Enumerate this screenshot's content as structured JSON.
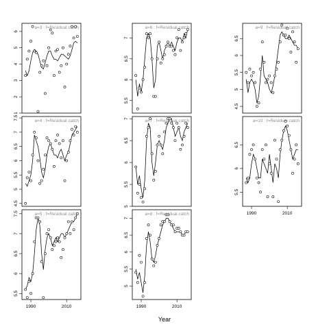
{
  "figure": {
    "xlabel": "Year"
  },
  "chart_data": [
    {
      "type": "line",
      "title": "a=3 : f=Residual catch",
      "xlim": [
        1985,
        2018
      ],
      "ylim": [
        1,
        6.5
      ],
      "yticks": [
        1,
        2,
        3,
        4,
        5,
        6
      ],
      "xticks": [],
      "x": [
        1987,
        1988,
        1989,
        1990,
        1991,
        1992,
        1993,
        1994,
        1995,
        1996,
        1997,
        1998,
        1999,
        2000,
        2001,
        2002,
        2003,
        2004,
        2005,
        2006,
        2007,
        2008,
        2009,
        2010,
        2011,
        2012,
        2013,
        2014,
        2015,
        2016
      ],
      "line": [
        3.6,
        3.3,
        3.6,
        4.2,
        4.7,
        4.9,
        4.8,
        4.6,
        4.2,
        3.8,
        3.7,
        4.1,
        4.5,
        4.8,
        4.8,
        4.5,
        4.3,
        4.3,
        4.2,
        4.4,
        4.6,
        4.6,
        4.5,
        4.4,
        4.3,
        4.5,
        4.9,
        5.3,
        5.4,
        5.3
      ],
      "points": [
        3.3,
        4.3,
        4.8,
        5.4,
        6.3,
        4.8,
        4.7,
        1.1,
        3.5,
        3.9,
        4.2,
        2.2,
        3.9,
        5.0,
        6.1,
        5.9,
        3.3,
        4.8,
        4.9,
        3.5,
        3.9,
        5.0,
        2.6,
        4.0,
        4.6,
        5.1,
        6.3,
        5.6,
        6.3,
        5.7
      ]
    },
    {
      "type": "line",
      "title": "a=6 : f=Residual catch",
      "xlim": [
        1985,
        2018
      ],
      "ylim": [
        5.2,
        7.35
      ],
      "yticks": [
        5.5,
        6.0,
        6.5,
        7.0
      ],
      "xticks": [],
      "x": [
        1987,
        1988,
        1989,
        1990,
        1991,
        1992,
        1993,
        1994,
        1995,
        1996,
        1997,
        1998,
        1999,
        2000,
        2001,
        2002,
        2003,
        2004,
        2005,
        2006,
        2007,
        2008,
        2009,
        2010,
        2011,
        2012,
        2013,
        2014,
        2015,
        2016
      ],
      "line": [
        6.0,
        5.6,
        5.9,
        5.7,
        6.0,
        6.5,
        7.0,
        7.1,
        7.0,
        6.5,
        5.8,
        6.0,
        6.8,
        6.9,
        6.7,
        6.5,
        6.7,
        6.8,
        6.9,
        6.8,
        6.9,
        6.8,
        6.7,
        6.9,
        7.0,
        7.0,
        6.9,
        7.1,
        7.0,
        7.2
      ],
      "points": [
        6.1,
        5.3,
        5.8,
        5.7,
        6.0,
        6.3,
        7.1,
        7.0,
        7.1,
        6.5,
        5.6,
        5.6,
        6.5,
        6.9,
        6.4,
        6.5,
        6.6,
        6.8,
        6.9,
        6.8,
        6.8,
        6.7,
        6.6,
        7.0,
        7.2,
        6.7,
        6.9,
        7.0,
        7.1,
        7.2
      ]
    },
    {
      "type": "line",
      "title": "a=9 : f=Residual catch",
      "xlim": [
        1985,
        2018
      ],
      "ylim": [
        4.3,
        6.95
      ],
      "yticks": [
        4.5,
        5.0,
        5.5,
        6.0,
        6.5
      ],
      "xticks": [],
      "x": [
        1987,
        1988,
        1989,
        1990,
        1991,
        1992,
        1993,
        1994,
        1995,
        1996,
        1997,
        1998,
        1999,
        2000,
        2001,
        2002,
        2003,
        2004,
        2005,
        2006,
        2007,
        2008,
        2009,
        2010,
        2011,
        2012,
        2013,
        2014,
        2015,
        2016
      ],
      "line": [
        5.3,
        4.9,
        5.2,
        5.3,
        5.2,
        5.0,
        4.6,
        4.8,
        5.4,
        6.0,
        5.4,
        5.3,
        5.2,
        5.0,
        4.9,
        5.1,
        5.4,
        5.8,
        6.2,
        6.6,
        6.7,
        6.6,
        6.5,
        6.5,
        6.6,
        6.5,
        6.4,
        6.3,
        6.3,
        6.2
      ],
      "points": [
        5.5,
        5.2,
        5.6,
        5.4,
        5.5,
        5.2,
        4.5,
        4.6,
        5.6,
        6.4,
        5.8,
        5.2,
        5.3,
        5.4,
        5.2,
        4.9,
        5.4,
        5.6,
        5.8,
        6.4,
        6.9,
        6.6,
        6.6,
        6.8,
        6.5,
        6.1,
        6.7,
        6.4,
        5.8,
        6.2
      ]
    },
    {
      "type": "line",
      "title": "a=4 : f=Residual catch",
      "xlim": [
        1985,
        2018
      ],
      "ylim": [
        4.4,
        7.55
      ],
      "yticks": [
        4.5,
        5.0,
        5.5,
        6.0,
        6.5,
        7.0,
        7.5
      ],
      "xticks": [],
      "x": [
        1987,
        1988,
        1989,
        1990,
        1991,
        1992,
        1993,
        1994,
        1995,
        1996,
        1997,
        1998,
        1999,
        2000,
        2001,
        2002,
        2003,
        2004,
        2005,
        2006,
        2007,
        2008,
        2009,
        2010,
        2011,
        2012,
        2013,
        2014,
        2015,
        2016
      ],
      "line": [
        5.2,
        5.1,
        5.3,
        5.5,
        6.0,
        6.9,
        6.7,
        6.5,
        6.1,
        5.6,
        5.4,
        5.7,
        6.2,
        6.5,
        6.6,
        6.4,
        6.2,
        6.2,
        6.1,
        6.3,
        6.4,
        6.2,
        6.0,
        6.2,
        6.3,
        6.6,
        6.9,
        7.0,
        7.1,
        7.2
      ],
      "points": [
        4.5,
        5.4,
        5.6,
        5.3,
        6.2,
        7.0,
        6.8,
        6.0,
        5.2,
        5.3,
        5.7,
        6.2,
        6.8,
        6.7,
        6.6,
        6.4,
        5.8,
        6.7,
        6.9,
        6.6,
        6.1,
        6.7,
        5.3,
        6.0,
        6.3,
        6.7,
        7.1,
        6.9,
        7.2,
        7.0
      ]
    },
    {
      "type": "line",
      "title": "a=7 : f=Residual catch",
      "xlim": [
        1985,
        2018
      ],
      "ylim": [
        5.0,
        7.05
      ],
      "yticks": [
        5.0,
        5.5,
        6.0,
        6.5,
        7.0
      ],
      "xticks": [],
      "x": [
        1987,
        1988,
        1989,
        1990,
        1991,
        1992,
        1993,
        1994,
        1995,
        1996,
        1997,
        1998,
        1999,
        2000,
        2001,
        2002,
        2003,
        2004,
        2005,
        2006,
        2007,
        2008,
        2009,
        2010,
        2011,
        2012,
        2013,
        2014,
        2015,
        2016
      ],
      "line": [
        5.9,
        5.5,
        5.7,
        5.4,
        5.2,
        5.6,
        6.5,
        6.9,
        6.8,
        6.0,
        5.7,
        6.0,
        6.4,
        6.5,
        6.4,
        6.3,
        6.5,
        6.8,
        6.9,
        7.0,
        7.0,
        6.8,
        6.6,
        6.7,
        6.8,
        6.6,
        6.5,
        6.7,
        6.8,
        6.9
      ],
      "points": [
        5.9,
        5.3,
        5.5,
        5.2,
        5.1,
        5.4,
        6.6,
        6.8,
        7.0,
        6.2,
        5.6,
        5.8,
        6.4,
        6.6,
        6.4,
        6.2,
        6.7,
        6.9,
        7.0,
        7.0,
        6.9,
        6.8,
        6.5,
        6.9,
        6.8,
        6.3,
        6.4,
        6.6,
        6.9,
        6.8
      ]
    },
    {
      "type": "line",
      "title": "a=10 : f=Residual catch",
      "xlim": [
        1985,
        2018
      ],
      "ylim": [
        5.2,
        7.1
      ],
      "yticks": [
        5.5,
        6.0,
        6.5
      ],
      "xticks": [
        1990,
        2010
      ],
      "x": [
        1987,
        1988,
        1989,
        1990,
        1991,
        1992,
        1993,
        1994,
        1995,
        1996,
        1997,
        1998,
        1999,
        2000,
        2001,
        2002,
        2003,
        2004,
        2005,
        2006,
        2007,
        2008,
        2009,
        2010,
        2011,
        2012,
        2013,
        2014,
        2015,
        2016
      ],
      "line": [
        5.8,
        5.7,
        5.8,
        6.1,
        6.3,
        6.2,
        6.0,
        5.8,
        5.8,
        6.2,
        6.1,
        6.0,
        5.9,
        6.3,
        6.0,
        5.7,
        6.1,
        6.0,
        5.8,
        6.3,
        6.6,
        6.8,
        6.9,
        6.8,
        6.6,
        6.4,
        6.2,
        6.3,
        6.4,
        6.4
      ],
      "points": [
        5.7,
        5.8,
        6.3,
        6.4,
        6.5,
        6.2,
        5.8,
        5.7,
        5.5,
        6.4,
        6.2,
        6.5,
        5.4,
        6.1,
        5.9,
        5.4,
        6.6,
        6.2,
        5.3,
        6.4,
        6.6,
        6.8,
        7.0,
        6.9,
        6.7,
        6.4,
        5.9,
        6.2,
        6.5,
        6.1
      ]
    },
    {
      "type": "line",
      "title": "a=5 : f=Residual catch",
      "xlim": [
        1985,
        2018
      ],
      "ylim": [
        5.35,
        7.6
      ],
      "yticks": [
        5.5,
        6.0,
        6.5,
        7.0,
        7.5
      ],
      "xticks": [
        1990,
        2010
      ],
      "x": [
        1987,
        1988,
        1989,
        1990,
        1991,
        1992,
        1993,
        1994,
        1995,
        1996,
        1997,
        1998,
        1999,
        2000,
        2001,
        2002,
        2003,
        2004,
        2005,
        2006,
        2007,
        2008,
        2009,
        2010,
        2011,
        2012,
        2013,
        2014,
        2015,
        2016
      ],
      "line": [
        5.6,
        5.7,
        5.9,
        5.8,
        6.0,
        6.5,
        7.1,
        7.4,
        7.2,
        6.5,
        6.1,
        6.6,
        6.9,
        7.0,
        6.9,
        6.7,
        6.8,
        6.9,
        6.8,
        6.9,
        7.0,
        7.0,
        6.9,
        7.0,
        7.1,
        7.2,
        7.3,
        7.3,
        7.4,
        7.5
      ],
      "points": [
        5.6,
        5.4,
        5.8,
        5.5,
        6.0,
        6.8,
        7.4,
        7.4,
        7.3,
        6.3,
        5.4,
        6.5,
        7.0,
        7.1,
        6.9,
        6.6,
        6.7,
        6.8,
        6.9,
        6.8,
        6.4,
        6.6,
        6.9,
        7.0,
        7.3,
        7.0,
        7.3,
        7.1,
        7.4,
        7.5
      ]
    },
    {
      "type": "line",
      "title": "a=8 : f=Residual catch",
      "xlim": [
        1985,
        2018
      ],
      "ylim": [
        4.6,
        7.25
      ],
      "yticks": [
        5.0,
        5.5,
        6.0,
        6.5,
        7.0
      ],
      "xticks": [
        1990,
        2010
      ],
      "x": [
        1987,
        1988,
        1989,
        1990,
        1991,
        1992,
        1993,
        1994,
        1995,
        1996,
        1997,
        1998,
        1999,
        2000,
        2001,
        2002,
        2003,
        2004,
        2005,
        2006,
        2007,
        2008,
        2009,
        2010,
        2011,
        2012,
        2013,
        2014,
        2015,
        2016
      ],
      "line": [
        5.5,
        5.2,
        5.4,
        5.1,
        4.8,
        5.3,
        6.2,
        6.6,
        6.3,
        5.8,
        5.7,
        5.9,
        6.2,
        6.4,
        6.6,
        6.8,
        6.9,
        7.0,
        7.0,
        6.9,
        6.8,
        6.7,
        6.6,
        6.6,
        6.6,
        6.6,
        6.5,
        6.5,
        6.6,
        6.6
      ],
      "points": [
        5.4,
        5.1,
        5.9,
        5.7,
        4.7,
        5.1,
        6.4,
        6.8,
        6.5,
        5.8,
        5.6,
        5.7,
        6.2,
        6.4,
        6.8,
        6.9,
        6.9,
        7.1,
        7.1,
        6.9,
        6.8,
        6.8,
        6.6,
        6.7,
        6.7,
        6.6,
        6.5,
        6.5,
        6.6,
        6.6
      ]
    }
  ]
}
